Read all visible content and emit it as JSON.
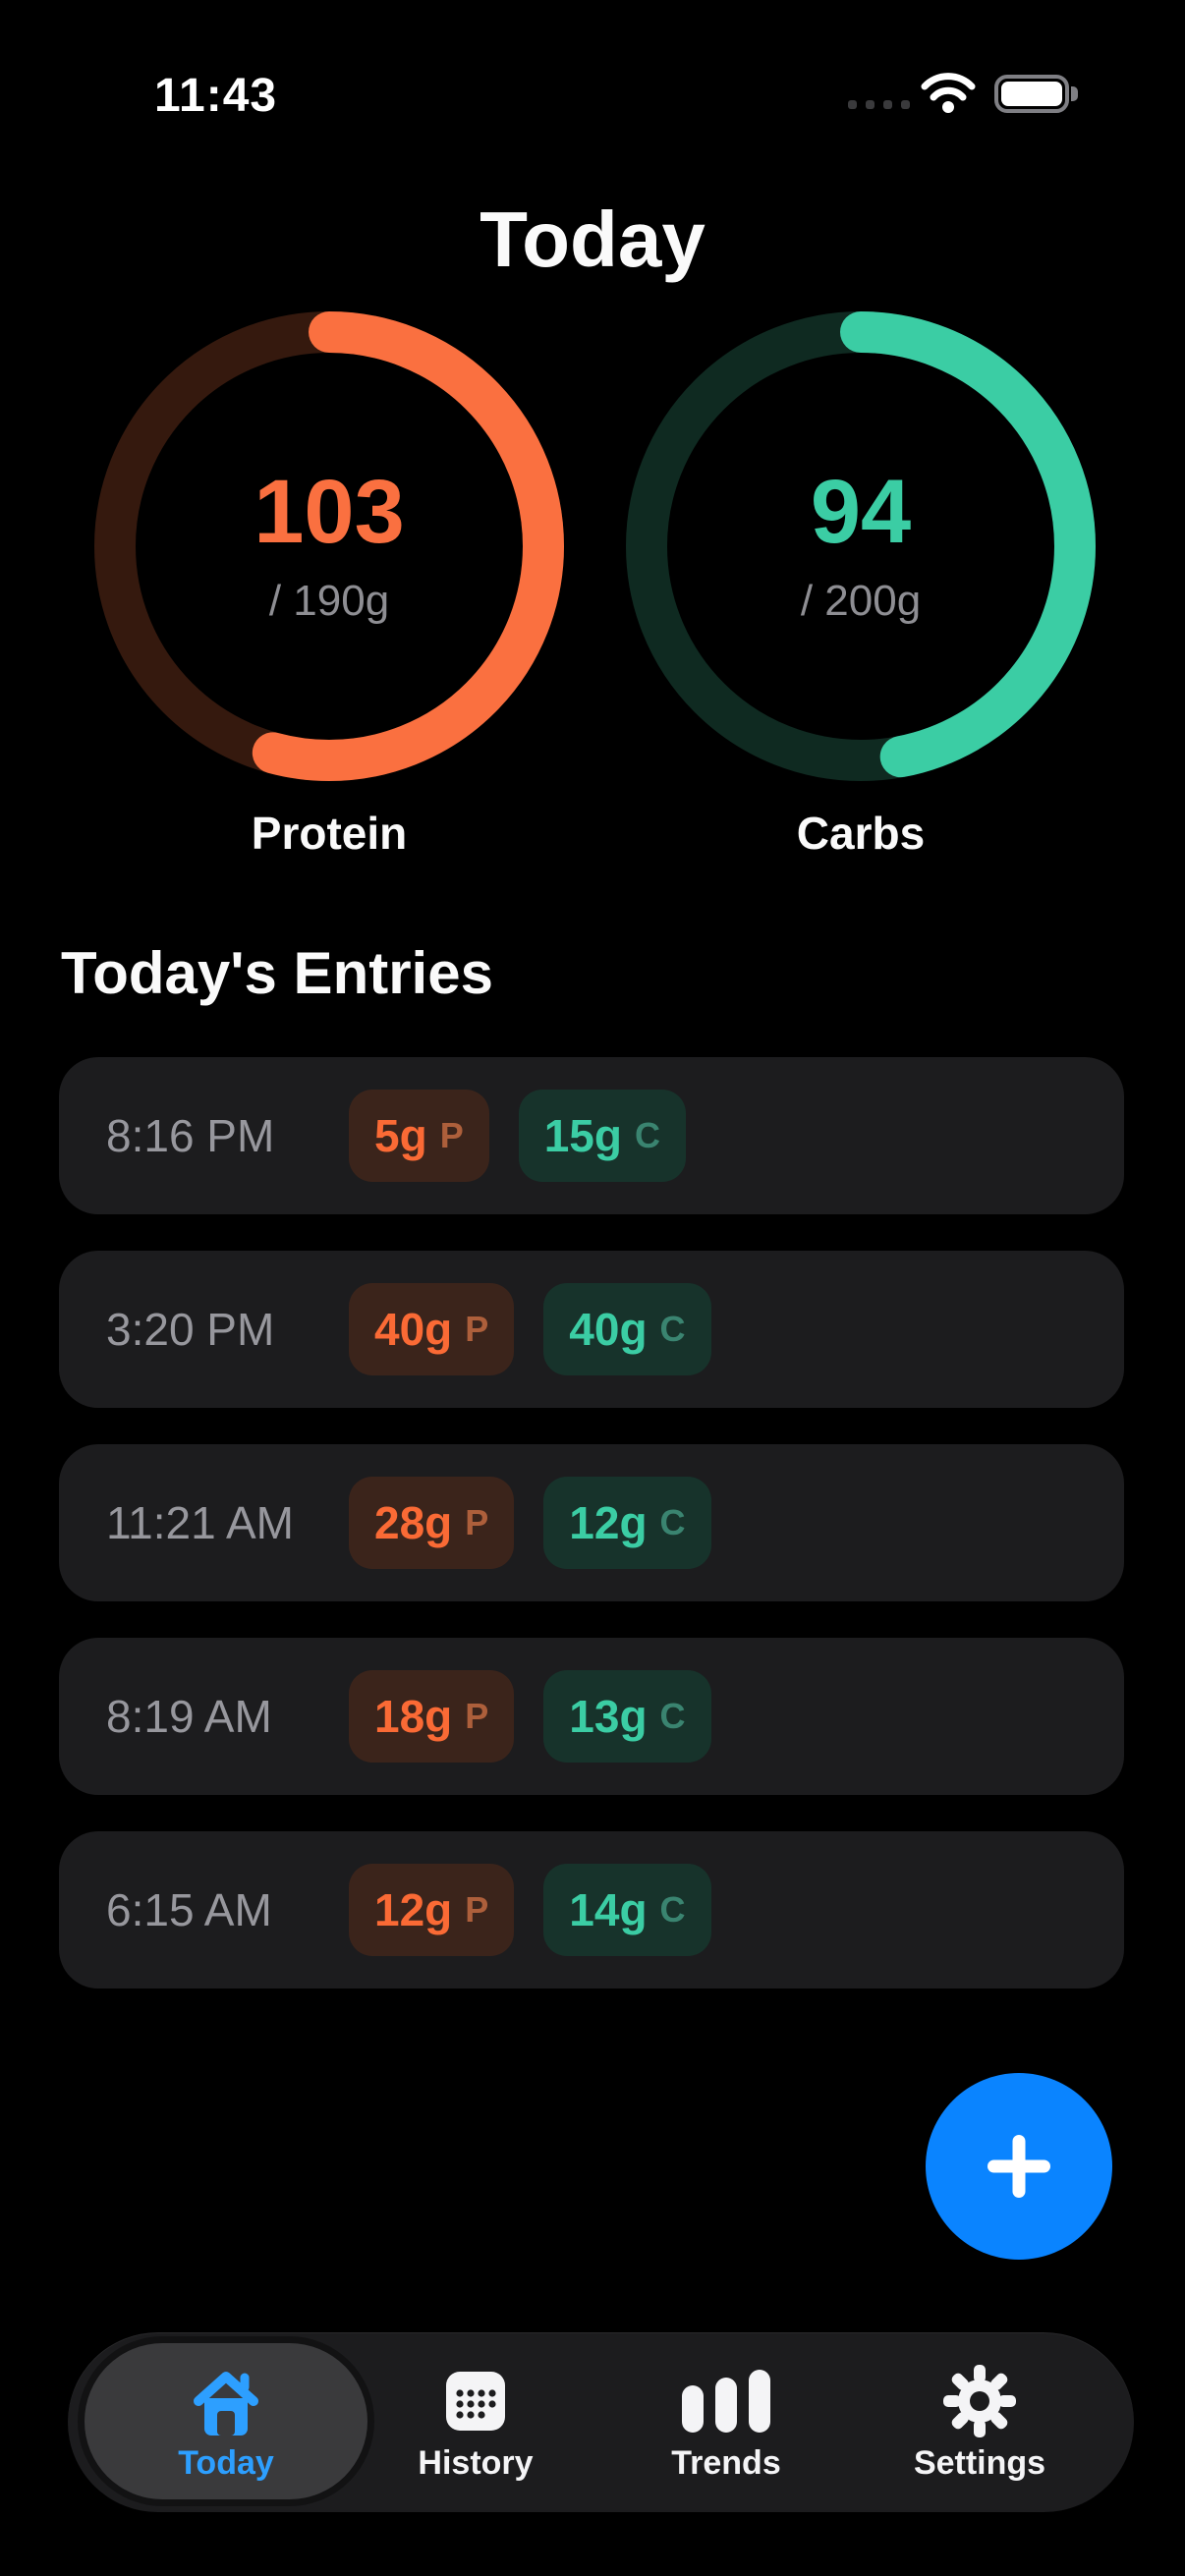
{
  "status_bar": {
    "time": "11:43",
    "icons": [
      "cellular-dots",
      "wifi",
      "battery-full"
    ]
  },
  "header": {
    "title": "Today"
  },
  "rings": [
    {
      "id": "protein",
      "label": "Protein",
      "value": 103,
      "goal": 190,
      "goal_display": "/ 190g",
      "color": "#FA7040",
      "track_color": "#35190E"
    },
    {
      "id": "carbs",
      "label": "Carbs",
      "value": 94,
      "goal": 200,
      "goal_display": "/ 200g",
      "color": "#3BCDA4",
      "track_color": "#0F2A21"
    }
  ],
  "entries_section": {
    "title": "Today's Entries"
  },
  "entries": [
    {
      "time": "8:16 PM",
      "protein": "5g",
      "carbs": "15g"
    },
    {
      "time": "3:20 PM",
      "protein": "40g",
      "carbs": "40g"
    },
    {
      "time": "11:21 AM",
      "protein": "28g",
      "carbs": "12g"
    },
    {
      "time": "8:19 AM",
      "protein": "18g",
      "carbs": "13g"
    },
    {
      "time": "6:15 AM",
      "protein": "12g",
      "carbs": "14g"
    }
  ],
  "badges": {
    "protein_suffix": "P",
    "carbs_suffix": "C"
  },
  "fab": {
    "action": "add-entry"
  },
  "tab_bar": {
    "items": [
      {
        "label": "Today",
        "icon": "home-icon",
        "active": true
      },
      {
        "label": "History",
        "icon": "history-icon",
        "active": false
      },
      {
        "label": "Trends",
        "icon": "trends-icon",
        "active": false
      },
      {
        "label": "Settings",
        "icon": "settings-icon",
        "active": false
      }
    ]
  },
  "colors": {
    "protein_orange": "#FA6A35",
    "protein_track": "#35190E",
    "protein_badge_bg": "#3B241B",
    "protein_suffix": "#AD5F3B",
    "carbs_teal": "#3BCDA4",
    "carbs_track": "#0F2A21",
    "carbs_badge_bg": "#17332B",
    "carbs_suffix": "#3A8470",
    "accent_blue": "#0A84FF",
    "tab_active_blue": "#2D9FFF",
    "card_bg": "#1C1C1E",
    "tabbar_bg": "#1C1C1E",
    "active_pill_bg": "#3A3A3C",
    "secondary_text": "#8E8E93"
  }
}
